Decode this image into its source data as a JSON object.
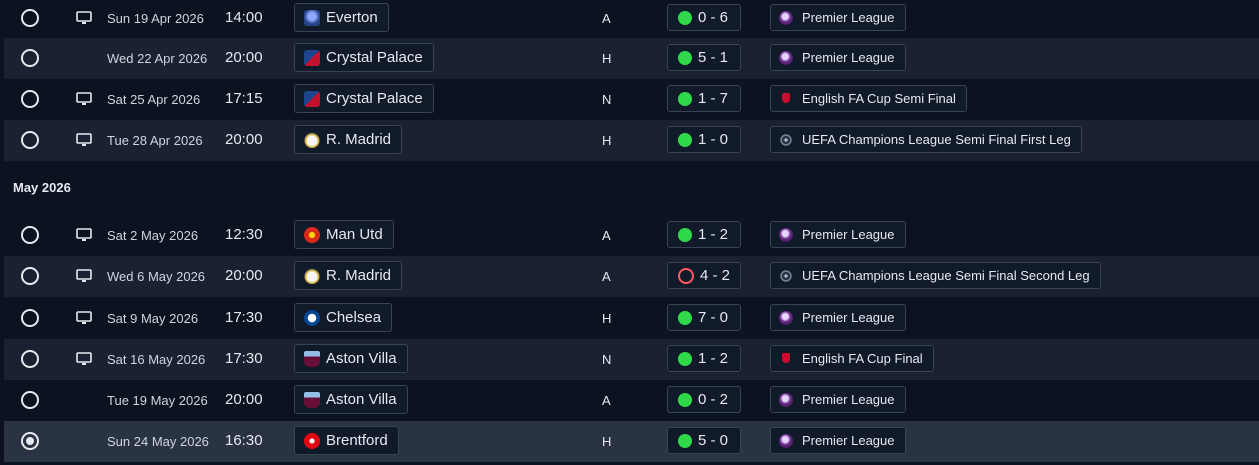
{
  "month_header": "May 2026",
  "colors": {
    "win": "#2fd94a",
    "loss": "#ff5a5a",
    "background": "#0b1220",
    "row_alt": "#1a2232",
    "row_selected": "#2a3344"
  },
  "fixtures": [
    {
      "selected": false,
      "tv": true,
      "date": "Sun 19 Apr 2026",
      "time": "14:00",
      "team": "Everton",
      "crest": "everton-crest",
      "venue": "A",
      "outcome": "win",
      "score": "0 - 6",
      "competition": "Premier League",
      "comp_icon": "premier-league-icon"
    },
    {
      "selected": false,
      "tv": false,
      "date": "Wed 22 Apr 2026",
      "time": "20:00",
      "team": "Crystal Palace",
      "crest": "crystal-palace-crest",
      "venue": "H",
      "outcome": "win",
      "score": "5 - 1",
      "competition": "Premier League",
      "comp_icon": "premier-league-icon"
    },
    {
      "selected": false,
      "tv": true,
      "date": "Sat 25 Apr 2026",
      "time": "17:15",
      "team": "Crystal Palace",
      "crest": "crystal-palace-crest",
      "venue": "N",
      "outcome": "win",
      "score": "1 - 7",
      "competition": "English FA Cup Semi Final",
      "comp_icon": "fa-cup-icon"
    },
    {
      "selected": false,
      "tv": true,
      "date": "Tue 28 Apr 2026",
      "time": "20:00",
      "team": "R. Madrid",
      "crest": "real-madrid-crest",
      "venue": "H",
      "outcome": "win",
      "score": "1 - 0",
      "competition": "UEFA Champions League Semi Final First Leg",
      "comp_icon": "champions-league-icon"
    },
    {
      "selected": false,
      "tv": true,
      "date": "Sat 2 May 2026",
      "time": "12:30",
      "team": "Man Utd",
      "crest": "man-utd-crest",
      "venue": "A",
      "outcome": "win",
      "score": "1 - 2",
      "competition": "Premier League",
      "comp_icon": "premier-league-icon"
    },
    {
      "selected": false,
      "tv": true,
      "date": "Wed 6 May 2026",
      "time": "20:00",
      "team": "R. Madrid",
      "crest": "real-madrid-crest",
      "venue": "A",
      "outcome": "loss",
      "score": "4 - 2",
      "competition": "UEFA Champions League Semi Final Second Leg",
      "comp_icon": "champions-league-icon"
    },
    {
      "selected": false,
      "tv": true,
      "date": "Sat 9 May 2026",
      "time": "17:30",
      "team": "Chelsea",
      "crest": "chelsea-crest",
      "venue": "H",
      "outcome": "win",
      "score": "7 - 0",
      "competition": "Premier League",
      "comp_icon": "premier-league-icon"
    },
    {
      "selected": false,
      "tv": true,
      "date": "Sat 16 May 2026",
      "time": "17:30",
      "team": "Aston Villa",
      "crest": "aston-villa-crest",
      "venue": "N",
      "outcome": "win",
      "score": "1 - 2",
      "competition": "English FA Cup Final",
      "comp_icon": "fa-cup-icon"
    },
    {
      "selected": false,
      "tv": false,
      "date": "Tue 19 May 2026",
      "time": "20:00",
      "team": "Aston Villa",
      "crest": "aston-villa-crest",
      "venue": "A",
      "outcome": "win",
      "score": "0 - 2",
      "competition": "Premier League",
      "comp_icon": "premier-league-icon"
    },
    {
      "selected": true,
      "tv": false,
      "date": "Sun 24 May 2026",
      "time": "16:30",
      "team": "Brentford",
      "crest": "brentford-crest",
      "venue": "H",
      "outcome": "win",
      "score": "5 - 0",
      "competition": "Premier League",
      "comp_icon": "premier-league-icon"
    }
  ]
}
